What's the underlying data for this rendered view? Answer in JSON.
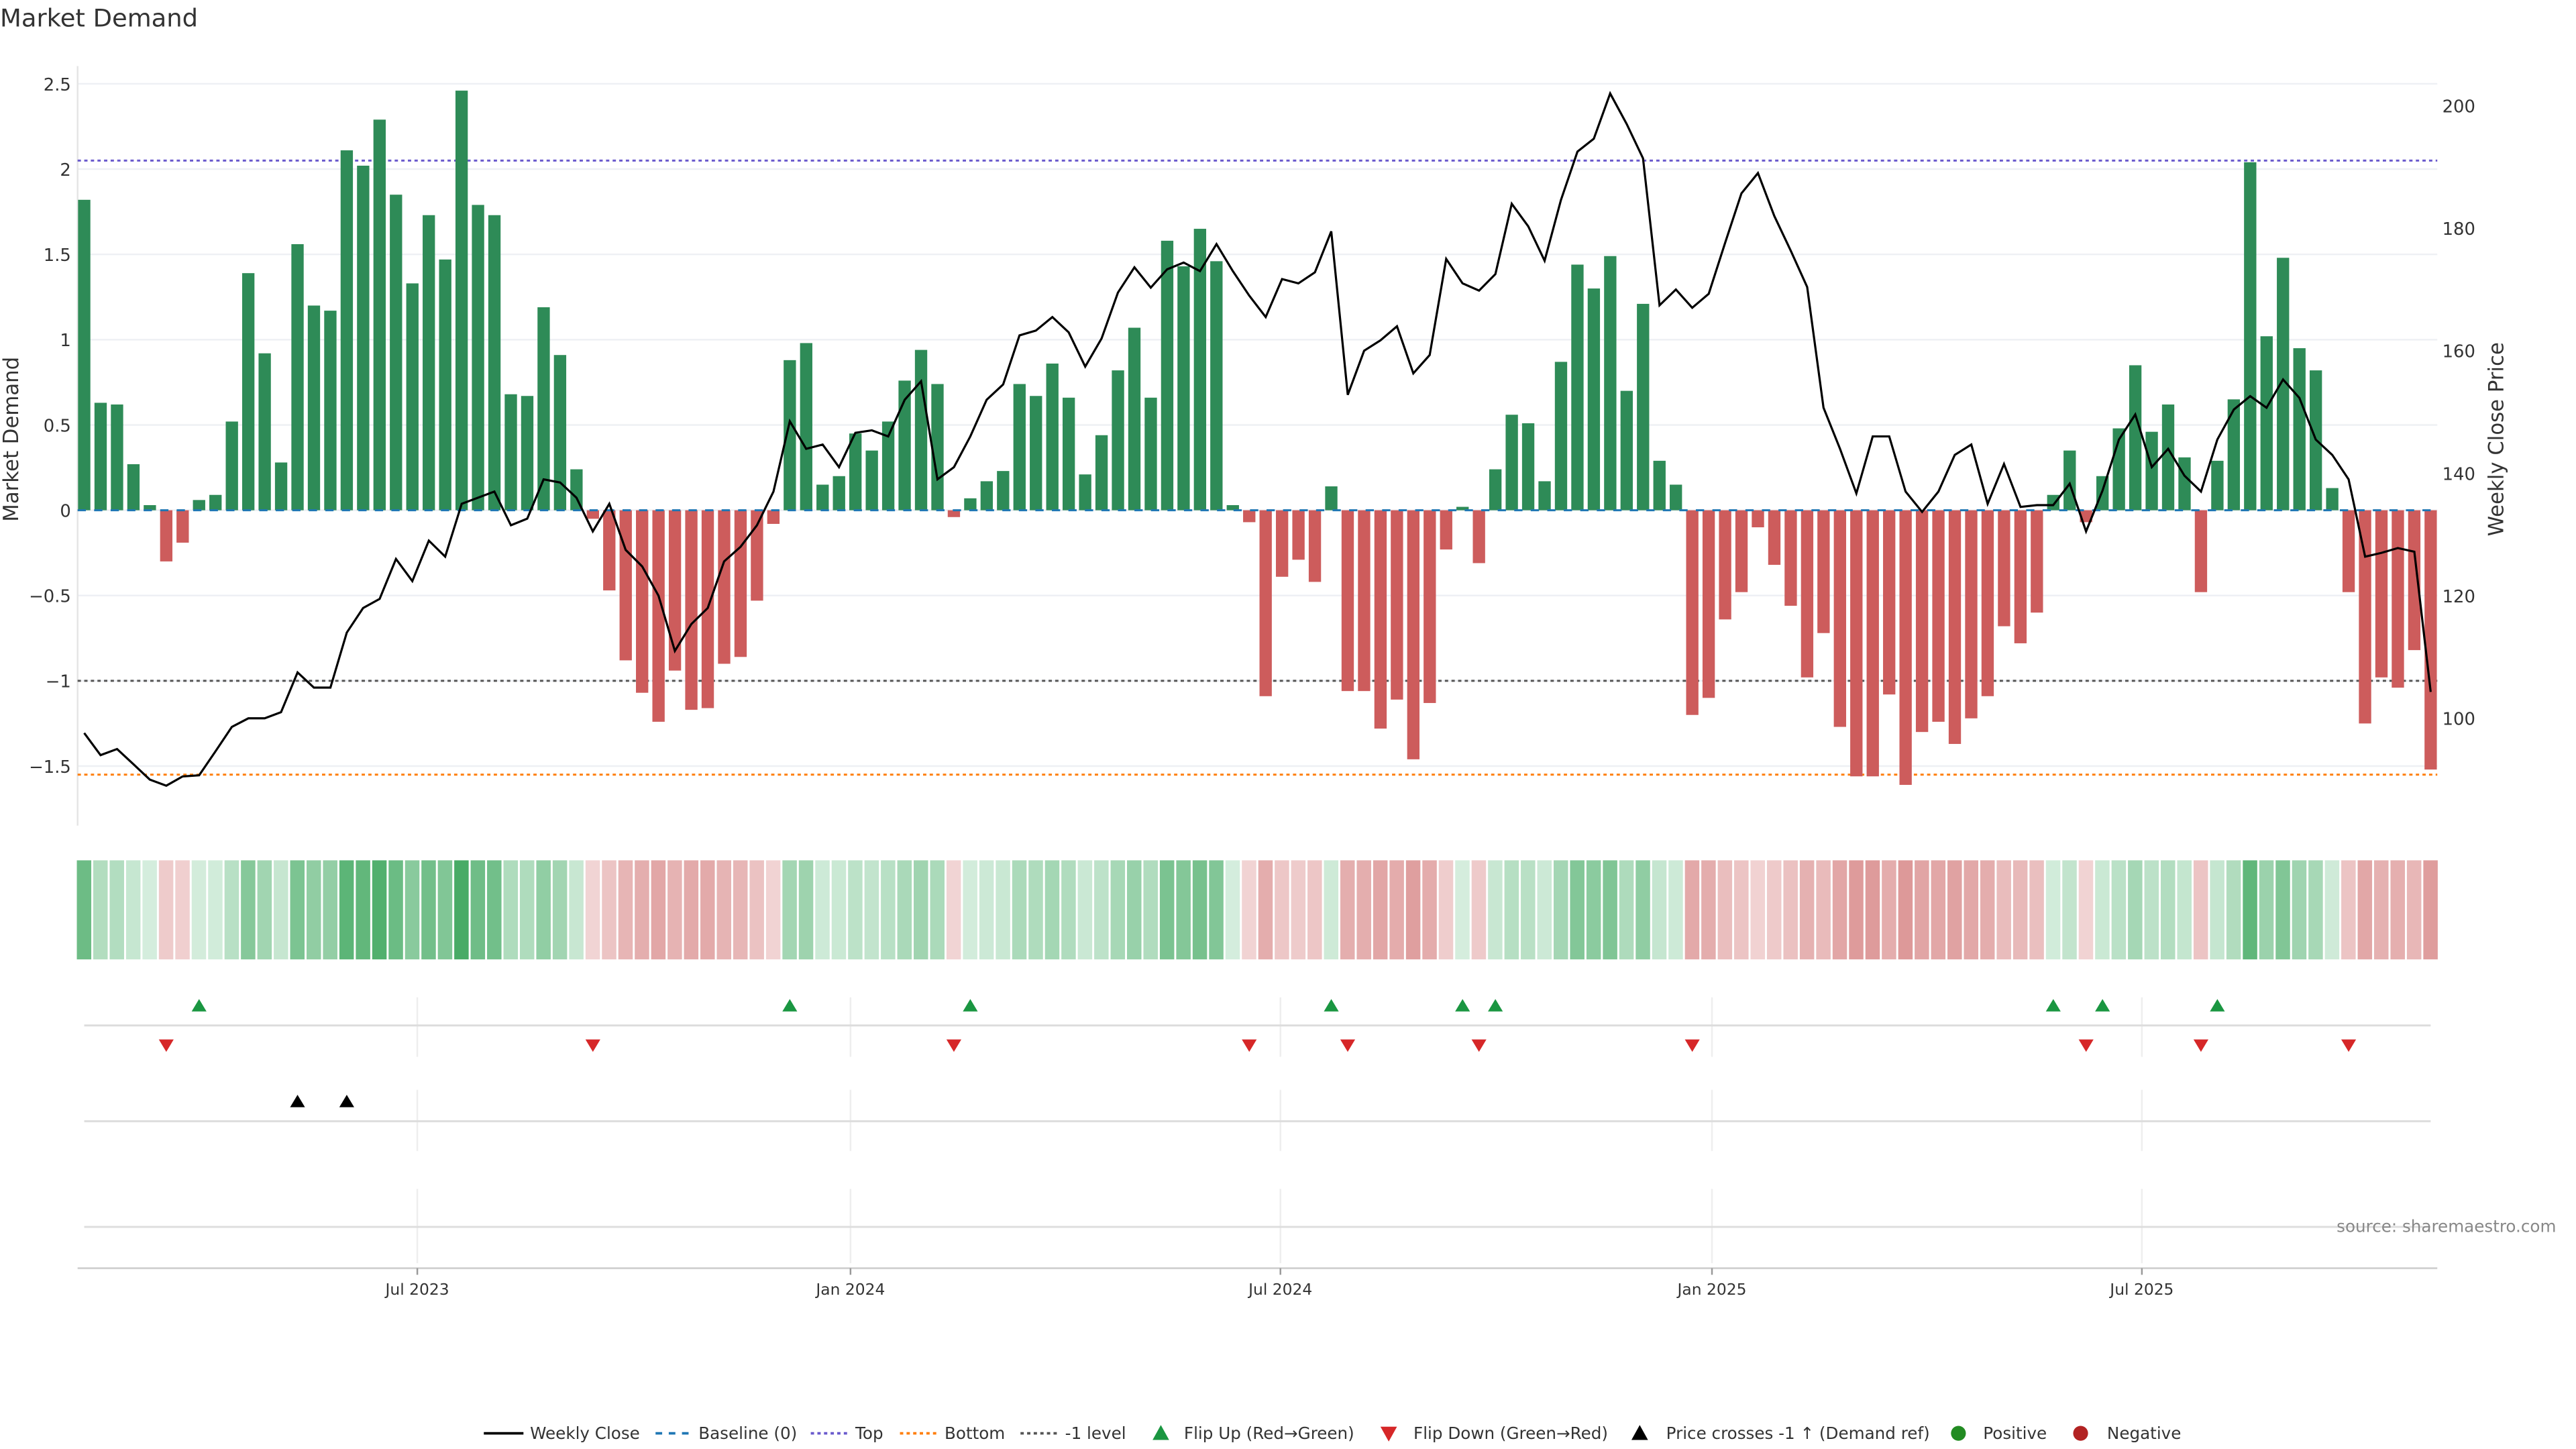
{
  "chart_data": {
    "type": "bar",
    "title": "Market Demand",
    "ylabel": "Market Demand",
    "y2label": "Weekly Close Price",
    "ylim": [
      -1.75,
      2.62
    ],
    "y2lim": [
      82,
      212
    ],
    "yticks": [
      2.5,
      2,
      1.5,
      1,
      0.5,
      0,
      -0.5,
      -1,
      -1.5
    ],
    "ytick_labels": [
      "2.5",
      "2",
      "1.5",
      "1",
      "0.5",
      "0",
      "−0.5",
      "−1",
      "−1.5"
    ],
    "y2ticks": [
      200,
      180,
      160,
      140,
      120,
      100
    ],
    "y2tick_labels": [
      "200",
      "180",
      "160",
      "140",
      "120",
      "100"
    ],
    "xticks": [
      {
        "index": 20.3,
        "label": "Jul 2023"
      },
      {
        "index": 46.7,
        "label": "Jan 2024"
      },
      {
        "index": 72.9,
        "label": "Jul 2024"
      },
      {
        "index": 99.2,
        "label": "Jan 2025"
      },
      {
        "index": 125.4,
        "label": "Jul 2025"
      }
    ],
    "reference_lines": {
      "baseline": 0,
      "top": 2.05,
      "bottom": -1.55,
      "minus_one": -1
    },
    "demand": [
      1.82,
      0.63,
      0.62,
      0.27,
      0.03,
      -0.3,
      -0.19,
      0.06,
      0.09,
      0.52,
      1.39,
      0.92,
      0.28,
      1.56,
      1.2,
      1.17,
      2.11,
      2.02,
      2.29,
      1.85,
      1.33,
      1.73,
      1.47,
      2.46,
      1.79,
      1.73,
      0.68,
      0.67,
      1.19,
      0.91,
      0.24,
      -0.05,
      -0.47,
      -0.88,
      -1.07,
      -1.24,
      -0.94,
      -1.17,
      -1.16,
      -0.9,
      -0.86,
      -0.53,
      -0.08,
      0.88,
      0.98,
      0.15,
      0.2,
      0.45,
      0.35,
      0.52,
      0.76,
      0.94,
      0.74,
      -0.04,
      0.07,
      0.17,
      0.23,
      0.74,
      0.67,
      0.86,
      0.66,
      0.21,
      0.44,
      0.82,
      1.07,
      0.66,
      1.58,
      1.43,
      1.65,
      1.46,
      0.03,
      -0.07,
      -1.09,
      -0.39,
      -0.29,
      -0.42,
      0.14,
      -1.06,
      -1.06,
      -1.28,
      -1.11,
      -1.46,
      -1.13,
      -0.23,
      0.02,
      -0.31,
      0.24,
      0.56,
      0.51,
      0.17,
      0.87,
      1.44,
      1.3,
      1.49,
      0.7,
      1.21,
      0.29,
      0.15,
      -1.2,
      -1.1,
      -0.64,
      -0.48,
      -0.1,
      -0.32,
      -0.56,
      -0.98,
      -0.72,
      -1.27,
      -1.56,
      -1.56,
      -1.08,
      -1.61,
      -1.3,
      -1.24,
      -1.37,
      -1.22,
      -1.09,
      -0.68,
      -0.78,
      -0.6,
      0.09,
      0.35,
      -0.07,
      0.2,
      0.48,
      0.85,
      0.46,
      0.62,
      0.31,
      -0.48,
      0.29,
      0.65,
      2.04,
      1.02,
      1.48,
      0.95,
      0.82,
      0.13,
      -0.48,
      -1.25,
      -0.98,
      -1.04,
      -0.82,
      -1.52
    ],
    "weekly_close": [
      97.6,
      94,
      95,
      92.5,
      90,
      89,
      90.5,
      90.7,
      94.6,
      98.6,
      100,
      100,
      101,
      107.5,
      105,
      105,
      114,
      118,
      119.5,
      126,
      122.4,
      129,
      126.4,
      135,
      136,
      137,
      131.5,
      132.6,
      139,
      138.5,
      136,
      130.5,
      135,
      127.5,
      124.8,
      120,
      111,
      115.4,
      118,
      125.6,
      128,
      131.5,
      137,
      148.5,
      144,
      144.7,
      141,
      146.6,
      147,
      146,
      152,
      155,
      139,
      141,
      146,
      152,
      154.5,
      162.5,
      163.3,
      165.5,
      163,
      157.4,
      162,
      169.5,
      173.6,
      170.3,
      173.3,
      174.4,
      173,
      177.4,
      173,
      169,
      165.5,
      171.7,
      171,
      172.8,
      179.5,
      152.8,
      160,
      161.7,
      164,
      156.3,
      159.3,
      175,
      171,
      169.8,
      172.5,
      184,
      180.3,
      174.7,
      184.6,
      192.5,
      194.6,
      202,
      197,
      191.4,
      167.4,
      170,
      167,
      169.3,
      177.6,
      185.7,
      189,
      182,
      176.3,
      170.4,
      150.7,
      144,
      136.7,
      146,
      146,
      137,
      133.7,
      137,
      143,
      144.7,
      135,
      141.5,
      134.5,
      134.8,
      134.8,
      138.3,
      130.5,
      137.2,
      145.5,
      149.6,
      141,
      144,
      139.6,
      137,
      145.5,
      150.4,
      152.6,
      150.7,
      155.3,
      152.3,
      145.5,
      143,
      139,
      126.4,
      127,
      127.8,
      127.2,
      104.3
    ],
    "flip_up_indices": [
      7,
      43,
      54,
      76,
      84,
      86,
      120,
      123,
      130
    ],
    "flip_down_indices": [
      5,
      31,
      53,
      71,
      77,
      85,
      98,
      122,
      129,
      138
    ],
    "price_cross_indices": [
      13,
      16
    ],
    "legend": [
      "Weekly Close",
      "Baseline (0)",
      "Top",
      "Bottom",
      "-1 level",
      "Flip Up (Red→Green)",
      "Flip Down (Green→Red)",
      "Price crosses -1 ↑ (Demand ref)",
      "Positive",
      "Negative"
    ],
    "legend_placement": "bottom-center",
    "source": "source: sharemaestro.com",
    "colors": {
      "positive": "#2e8b57",
      "negative": "#cd5c5c",
      "line": "#000000",
      "baseline": "#1f77b4",
      "top": "#6a5acd",
      "bottom": "#ff7f0e",
      "minus_one": "#555555",
      "flip_up": "#1a9641",
      "flip_down": "#d62728",
      "cross": "#000000",
      "dot_pos": "#228b22",
      "dot_neg": "#b22222"
    }
  }
}
